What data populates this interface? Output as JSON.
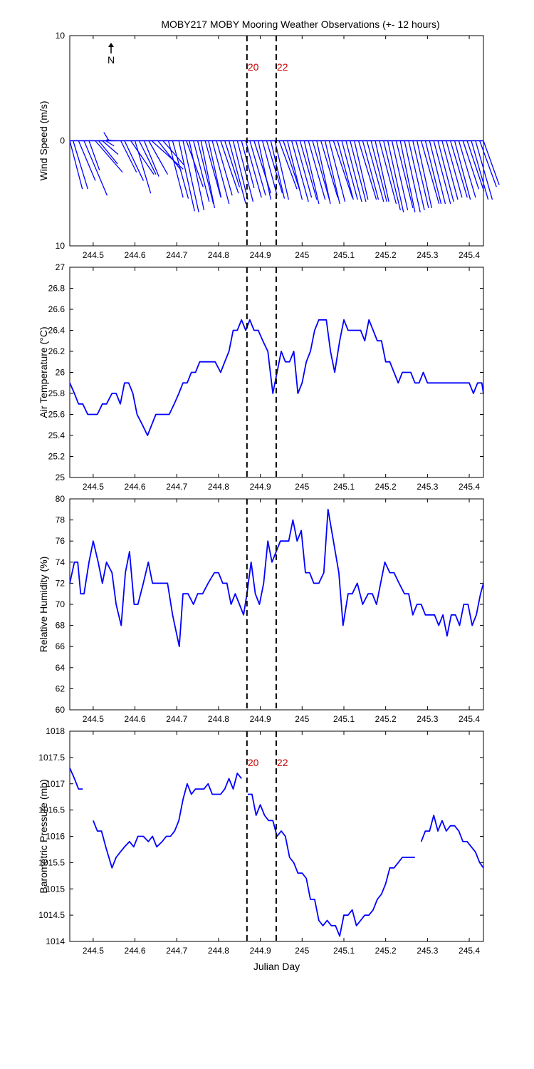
{
  "title": "MOBY217 MOBY Mooring Weather Observations (+- 12 hours)",
  "colors": {
    "series": "#0000ff",
    "marker_text": "#cc0000",
    "axis": "#000000"
  },
  "north_label": "N",
  "chart_data": [
    {
      "type": "quiver",
      "ylabel": "Wind Speed (m/s)",
      "xlabel": "Julian Day",
      "xlim": [
        244.444,
        245.434
      ],
      "ylim": [
        -10,
        10
      ],
      "yticks": [
        10,
        0,
        10
      ],
      "xticks": [
        244.5,
        244.6,
        244.7,
        244.8,
        244.9,
        245,
        245.1,
        245.2,
        245.3,
        245.4
      ],
      "markers": [
        {
          "x": 244.868,
          "label": "20"
        },
        {
          "x": 244.938,
          "label": "22"
        }
      ],
      "vectors_note": "u,v components (m/s) of wind at each time",
      "x": [
        244.444,
        244.452,
        244.465,
        244.478,
        244.49,
        244.505,
        244.513,
        244.522,
        244.53,
        244.538,
        244.547,
        244.555,
        244.566,
        244.575,
        244.59,
        244.6,
        244.61,
        244.622,
        244.633,
        244.64,
        244.655,
        244.667,
        244.68,
        244.69,
        244.705,
        244.715,
        244.723,
        244.73,
        244.74,
        244.75,
        244.758,
        244.768,
        244.776,
        244.785,
        244.795,
        244.805,
        244.815,
        244.825,
        244.835,
        244.845,
        244.855,
        244.865,
        244.875,
        244.885,
        244.895,
        244.905,
        244.915,
        244.925,
        244.935,
        244.945,
        244.955,
        244.965,
        244.975,
        244.985,
        244.995,
        245.005,
        245.015,
        245.025,
        245.035,
        245.045,
        245.055,
        245.065,
        245.075,
        245.085,
        245.095,
        245.105,
        245.115,
        245.125,
        245.135,
        245.145,
        245.155,
        245.165,
        245.175,
        245.185,
        245.195,
        245.205,
        245.215,
        245.225,
        245.235,
        245.245,
        245.255,
        245.265,
        245.275,
        245.285,
        245.295,
        245.305,
        245.315,
        245.325,
        245.335,
        245.345,
        245.355,
        245.365,
        245.375,
        245.385,
        245.395,
        245.405,
        245.415,
        245.425,
        245.434
      ],
      "u": [
        1.2,
        1.4,
        1.6,
        2.2,
        1.0,
        2.6,
        1.8,
        1.5,
        0.8,
        -0.5,
        -0.6,
        -1.6,
        1.5,
        1.8,
        2.2,
        1.5,
        1.6,
        1.4,
        1.8,
        3.0,
        2.2,
        2.0,
        1.4,
        1.5,
        1.5,
        1.5,
        1.6,
        1.4,
        1.5,
        1.5,
        1.3,
        1.5,
        1.2,
        1.6,
        1.5,
        1.7,
        1.4,
        1.6,
        1.4,
        1.5,
        1.2,
        1.5,
        1.5,
        1.6,
        1.2,
        1.4,
        1.5,
        1.3,
        1.3,
        1.7,
        1.6,
        1.4,
        1.6,
        1.5,
        1.6,
        1.4,
        1.6,
        1.6,
        1.3,
        1.6,
        1.4,
        1.5,
        1.8,
        1.5,
        1.5,
        1.5,
        1.5,
        1.3,
        1.7,
        1.5,
        1.6,
        1.5,
        1.3,
        1.6,
        1.6,
        1.5,
        1.5,
        1.6,
        1.4,
        1.5,
        1.5,
        1.5,
        1.4,
        1.7,
        1.5,
        1.5,
        1.6,
        1.5,
        1.5,
        1.5,
        1.6,
        1.5,
        1.6,
        1.5,
        1.6,
        1.6,
        1.6,
        1.6,
        1.5
      ],
      "v": [
        -4.6,
        -4.6,
        -3.8,
        -5.2,
        -2.8,
        -3.0,
        -2.2,
        -1.3,
        -0.5,
        0.8,
        0.1,
        0.0,
        -3.0,
        -3.8,
        -3.2,
        -5.0,
        -3.2,
        -3.4,
        -3.2,
        -2.7,
        -2.8,
        -2.3,
        -5.4,
        -5.5,
        -6.7,
        -6.8,
        -4.4,
        -6.6,
        -5.8,
        -6.0,
        -6.4,
        -5.4,
        -5.4,
        -6.0,
        -5.2,
        -5.0,
        -4.4,
        -6.0,
        -5.6,
        -5.8,
        -4.5,
        -5.4,
        -5.2,
        -5.0,
        -5.6,
        -5.2,
        -5.0,
        -5.5,
        -5.6,
        -4.6,
        -4.8,
        -5.6,
        -5.8,
        -5.4,
        -5.6,
        -6.0,
        -5.6,
        -5.6,
        -6.0,
        -5.4,
        -6.0,
        -5.8,
        -5.4,
        -5.6,
        -5.6,
        -5.8,
        -5.8,
        -5.6,
        -5.6,
        -5.6,
        -5.8,
        -5.8,
        -5.8,
        -6.0,
        -6.6,
        -6.8,
        -6.6,
        -6.4,
        -6.8,
        -6.8,
        -6.6,
        -6.4,
        -6.4,
        -6.0,
        -6.0,
        -6.0,
        -6.0,
        -5.8,
        -5.6,
        -5.4,
        -5.4,
        -5.6,
        -5.4,
        -4.6,
        -4.8,
        -5.6,
        -5.6,
        -4.4,
        -4.2
      ]
    },
    {
      "type": "line",
      "ylabel": "Air Temperature (°C)",
      "xlabel": "Julian Day",
      "xlim": [
        244.444,
        245.434
      ],
      "ylim": [
        25,
        27
      ],
      "yticks": [
        25,
        25.2,
        25.4,
        25.6,
        25.8,
        26,
        26.2,
        26.4,
        26.6,
        26.8,
        27
      ],
      "xticks": [
        244.5,
        244.6,
        244.7,
        244.8,
        244.9,
        245,
        245.1,
        245.2,
        245.3,
        245.4
      ],
      "markers": [
        {
          "x": 244.868,
          "label": ""
        },
        {
          "x": 244.938,
          "label": ""
        }
      ],
      "x": [
        244.444,
        244.455,
        244.465,
        244.475,
        244.487,
        244.497,
        244.51,
        244.522,
        244.532,
        244.545,
        244.555,
        244.565,
        244.575,
        244.585,
        244.595,
        244.605,
        244.618,
        244.63,
        244.64,
        244.65,
        244.66,
        244.672,
        244.682,
        244.694,
        244.705,
        244.715,
        244.725,
        244.735,
        244.745,
        244.755,
        244.767,
        244.78,
        244.792,
        244.805,
        244.815,
        244.825,
        244.835,
        244.845,
        244.855,
        244.865,
        244.875,
        244.885,
        244.895,
        244.906,
        244.918,
        244.93,
        244.94,
        244.95,
        244.96,
        244.97,
        244.98,
        244.99,
        245.0,
        245.01,
        245.02,
        245.03,
        245.04,
        245.048,
        245.058,
        245.068,
        245.078,
        245.09,
        245.1,
        245.11,
        245.12,
        245.13,
        245.14,
        245.15,
        245.16,
        245.17,
        245.18,
        245.19,
        245.2,
        245.21,
        245.22,
        245.23,
        245.24,
        245.25,
        245.26,
        245.27,
        245.28,
        245.29,
        245.3,
        245.31,
        245.32,
        245.33,
        245.34,
        245.35,
        245.36,
        245.37,
        245.38,
        245.39,
        245.4,
        245.41,
        245.42,
        245.43,
        245.434
      ],
      "y": [
        25.9,
        25.8,
        25.7,
        25.7,
        25.6,
        25.6,
        25.6,
        25.7,
        25.7,
        25.8,
        25.8,
        25.7,
        25.9,
        25.9,
        25.8,
        25.6,
        25.5,
        25.4,
        25.5,
        25.6,
        25.6,
        25.6,
        25.6,
        25.7,
        25.8,
        25.9,
        25.9,
        26.0,
        26.0,
        26.1,
        26.1,
        26.1,
        26.1,
        26.0,
        26.1,
        26.2,
        26.4,
        26.4,
        26.5,
        26.4,
        26.5,
        26.4,
        26.4,
        26.3,
        26.2,
        25.8,
        26.0,
        26.2,
        26.1,
        26.1,
        26.2,
        25.8,
        25.9,
        26.1,
        26.2,
        26.4,
        26.5,
        26.5,
        26.5,
        26.2,
        26.0,
        26.3,
        26.5,
        26.4,
        26.4,
        26.4,
        26.4,
        26.3,
        26.5,
        26.4,
        26.3,
        26.3,
        26.1,
        26.1,
        26.0,
        25.9,
        26.0,
        26.0,
        26.0,
        25.9,
        25.9,
        26.0,
        25.9,
        25.9,
        25.9,
        25.9,
        25.9,
        25.9,
        25.9,
        25.9,
        25.9,
        25.9,
        25.9,
        25.8,
        25.9,
        25.9,
        25.8
      ]
    },
    {
      "type": "line",
      "ylabel": "Relative Humidity (%)",
      "xlabel": "Julian Day",
      "xlim": [
        244.444,
        245.434
      ],
      "ylim": [
        60,
        80
      ],
      "yticks": [
        60,
        62,
        64,
        66,
        68,
        70,
        72,
        74,
        76,
        78,
        80
      ],
      "xticks": [
        244.5,
        244.6,
        244.7,
        244.8,
        244.9,
        245,
        245.1,
        245.2,
        245.3,
        245.4
      ],
      "markers": [
        {
          "x": 244.868,
          "label": ""
        },
        {
          "x": 244.938,
          "label": ""
        }
      ],
      "x": [
        244.444,
        244.455,
        244.463,
        244.47,
        244.478,
        244.49,
        244.5,
        244.512,
        244.522,
        244.532,
        244.545,
        244.555,
        244.567,
        244.577,
        244.587,
        244.598,
        244.607,
        244.62,
        244.632,
        244.642,
        244.652,
        244.665,
        244.678,
        244.69,
        244.706,
        244.715,
        244.727,
        244.74,
        244.75,
        244.762,
        244.775,
        244.79,
        244.8,
        244.81,
        244.82,
        244.83,
        244.84,
        244.85,
        244.86,
        244.868,
        244.878,
        244.888,
        244.898,
        244.908,
        244.918,
        244.928,
        244.938,
        244.948,
        244.958,
        244.968,
        244.978,
        244.988,
        244.998,
        245.008,
        245.018,
        245.028,
        245.04,
        245.052,
        245.062,
        245.075,
        245.088,
        245.098,
        245.11,
        245.12,
        245.132,
        245.145,
        245.158,
        245.168,
        245.178,
        245.188,
        245.198,
        245.21,
        245.22,
        245.232,
        245.245,
        245.255,
        245.265,
        245.275,
        245.285,
        245.295,
        245.305,
        245.317,
        245.327,
        245.337,
        245.347,
        245.357,
        245.367,
        245.377,
        245.387,
        245.397,
        245.407,
        245.417,
        245.427,
        245.434
      ],
      "y": [
        72,
        74,
        74,
        71,
        71,
        74,
        76,
        74,
        72,
        74,
        73,
        70,
        68,
        73,
        75,
        70,
        70,
        72,
        74,
        72,
        72,
        72,
        72,
        69,
        66,
        71,
        71,
        70,
        71,
        71,
        72,
        73,
        73,
        72,
        72,
        70,
        71,
        70,
        69,
        71,
        74,
        71,
        70,
        72,
        76,
        74,
        75,
        76,
        76,
        76,
        78,
        76,
        77,
        73,
        73,
        72,
        72,
        73,
        79,
        76,
        73,
        68,
        71,
        71,
        72,
        70,
        71,
        71,
        70,
        72,
        74,
        73,
        73,
        72,
        71,
        71,
        69,
        70,
        70,
        69,
        69,
        69,
        68,
        69,
        67,
        69,
        69,
        68,
        70,
        70,
        68,
        69,
        71,
        72
      ]
    },
    {
      "type": "line",
      "ylabel": "Barometric Pressure (mb)",
      "xlabel": "Julian Day",
      "xlim": [
        244.444,
        245.434
      ],
      "ylim": [
        1014,
        1018
      ],
      "yticks": [
        1014,
        1014.5,
        1015,
        1015.5,
        1016,
        1016.5,
        1017,
        1017.5,
        1018
      ],
      "xticks": [
        244.5,
        244.6,
        244.7,
        244.8,
        244.9,
        245,
        245.1,
        245.2,
        245.3,
        245.4
      ],
      "markers": [
        {
          "x": 244.868,
          "label": "20"
        },
        {
          "x": 244.938,
          "label": "22"
        }
      ],
      "segments": [
        {
          "x": [
            244.444,
            244.455,
            244.465,
            244.475
          ],
          "y": [
            1017.3,
            1017.1,
            1016.9,
            1016.9
          ]
        },
        {
          "x": [
            244.5,
            244.51,
            244.52,
            244.53,
            244.545,
            244.555,
            244.565,
            244.575,
            244.587,
            244.597,
            244.607,
            244.62,
            244.632,
            244.642,
            244.652,
            244.665,
            244.675,
            244.685,
            244.695,
            244.705,
            244.715,
            244.725,
            244.735,
            244.745,
            244.755,
            244.765,
            244.775,
            244.785,
            244.795,
            244.805,
            244.815,
            244.825,
            244.835,
            244.845,
            244.855
          ],
          "y": [
            1016.3,
            1016.1,
            1016.1,
            1015.8,
            1015.4,
            1015.6,
            1015.7,
            1015.8,
            1015.9,
            1015.8,
            1016.0,
            1016.0,
            1015.9,
            1016.0,
            1015.8,
            1015.9,
            1016.0,
            1016.0,
            1016.1,
            1016.3,
            1016.7,
            1017.0,
            1016.8,
            1016.9,
            1016.9,
            1016.9,
            1017.0,
            1016.8,
            1016.8,
            1016.8,
            1016.9,
            1017.1,
            1016.9,
            1017.2,
            1017.1
          ]
        },
        {
          "x": [
            244.87,
            244.88,
            244.89,
            244.9,
            244.91,
            244.92,
            244.93,
            244.94,
            244.95,
            244.96,
            244.97,
            244.98,
            244.99,
            245.0,
            245.01,
            245.02,
            245.03,
            245.04,
            245.05,
            245.06,
            245.07,
            245.08,
            245.09,
            245.1,
            245.11,
            245.12,
            245.13,
            245.14,
            245.15,
            245.16,
            245.17,
            245.18,
            245.19,
            245.2,
            245.21,
            245.22,
            245.23,
            245.24,
            245.25,
            245.26,
            245.27
          ],
          "y": [
            1016.8,
            1016.8,
            1016.4,
            1016.6,
            1016.4,
            1016.3,
            1016.3,
            1016.0,
            1016.1,
            1016.0,
            1015.6,
            1015.5,
            1015.3,
            1015.3,
            1015.2,
            1014.8,
            1014.8,
            1014.4,
            1014.3,
            1014.4,
            1014.3,
            1014.3,
            1014.1,
            1014.5,
            1014.5,
            1014.6,
            1014.3,
            1014.4,
            1014.5,
            1014.5,
            1014.6,
            1014.8,
            1014.9,
            1015.1,
            1015.4,
            1015.4,
            1015.5,
            1015.6,
            1015.6,
            1015.6,
            1015.6
          ]
        },
        {
          "x": [
            245.285,
            245.295,
            245.305,
            245.315,
            245.325,
            245.335,
            245.345,
            245.355,
            245.365,
            245.375,
            245.385,
            245.395,
            245.405,
            245.415,
            245.425,
            245.434
          ],
          "y": [
            1015.9,
            1016.1,
            1016.1,
            1016.4,
            1016.1,
            1016.3,
            1016.1,
            1016.2,
            1016.2,
            1016.1,
            1015.9,
            1015.9,
            1015.8,
            1015.7,
            1015.5,
            1015.4
          ]
        }
      ]
    }
  ]
}
